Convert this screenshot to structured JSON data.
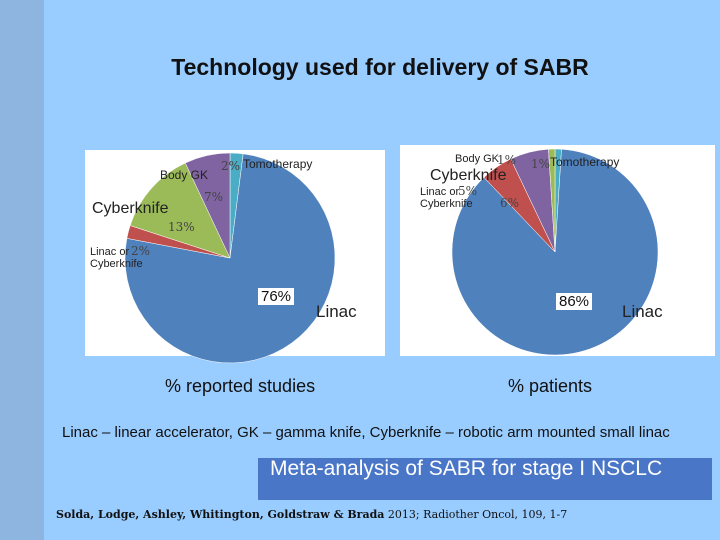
{
  "slide_title": "Technology used for delivery of SABR",
  "chart_data": [
    {
      "type": "pie",
      "title": "% reported studies",
      "categories": [
        "Tomotherapy",
        "Linac",
        "Linac or Cyberknife",
        "Cyberknife",
        "Body GK"
      ],
      "values": [
        2,
        76,
        2,
        13,
        7
      ],
      "value_labels": [
        "2%",
        "76%",
        "2%",
        "13%",
        "7%"
      ],
      "colors": [
        "#4bacc6",
        "#4f81bd",
        "#c0504d",
        "#9bbb59",
        "#8064a2"
      ]
    },
    {
      "type": "pie",
      "title": "% patients",
      "categories": [
        "Tomotherapy",
        "Linac",
        "Linac or Cyberknife",
        "Cyberknife",
        "Body GK"
      ],
      "values": [
        1,
        86,
        5,
        6,
        1
      ],
      "value_labels": [
        "1%",
        "86%",
        "5%",
        "6%",
        "1%"
      ],
      "colors": [
        "#4bacc6",
        "#4f81bd",
        "#c0504d",
        "#8064a2",
        "#9bbb59"
      ]
    }
  ],
  "footnote": "Linac – linear accelerator, GK – gamma knife, Cyberknife – robotic arm mounted small linac",
  "banner": "Meta-analysis of SABR for stage I NSCLC",
  "citation_authors": "Solda, Lodge, Ashley, Whitington, Goldstraw & Brada",
  "citation_ref": "2013; Radiother Oncol, 109, 1-7"
}
